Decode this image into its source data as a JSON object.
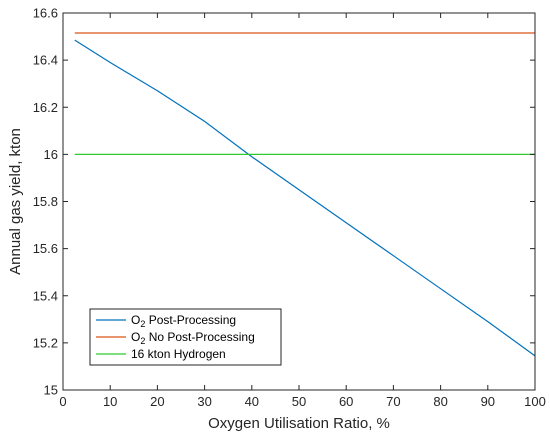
{
  "chart_data": {
    "type": "line",
    "title": "",
    "xlabel": "Oxygen Utilisation Ratio, %",
    "ylabel": "Annual gas yield, kton",
    "xlim": [
      0,
      100
    ],
    "ylim": [
      15,
      16.6
    ],
    "x_ticks": [
      0,
      10,
      20,
      30,
      40,
      50,
      60,
      70,
      80,
      90,
      100
    ],
    "x_tick_labels": [
      "0",
      "10",
      "20",
      "30",
      "40",
      "50",
      "60",
      "70",
      "80",
      "90",
      "100"
    ],
    "y_ticks": [
      15,
      15.2,
      15.4,
      15.6,
      15.8,
      16,
      16.2,
      16.4,
      16.6
    ],
    "y_tick_labels": [
      "15",
      "15.2",
      "15.4",
      "15.6",
      "15.8",
      "16",
      "16.2",
      "16.4",
      "16.6"
    ],
    "grid": false,
    "legend_position": "bottom-left",
    "series": [
      {
        "name": "O2 Post-Processing",
        "legend_main": "O",
        "legend_sub": "2",
        "legend_rest": " Post-Processing",
        "color": "#0072BD",
        "x": [
          2.5,
          10,
          20,
          30,
          40,
          50,
          60,
          70,
          80,
          90,
          100
        ],
        "y": [
          16.485,
          16.39,
          16.27,
          16.14,
          15.99,
          15.85,
          15.71,
          15.57,
          15.43,
          15.29,
          15.145
        ]
      },
      {
        "name": "O2 No Post-Processing",
        "legend_main": "O",
        "legend_sub": "2",
        "legend_rest": " No Post-Processing",
        "color": "#D95319",
        "x": [
          2.5,
          100
        ],
        "y": [
          16.515,
          16.515
        ]
      },
      {
        "name": "16 kton Hydrogen",
        "legend_main": "16 kton Hydrogen",
        "legend_sub": "",
        "legend_rest": "",
        "color": "#2ECC2E",
        "x": [
          2.5,
          100
        ],
        "y": [
          16.0,
          16.0
        ]
      }
    ]
  }
}
